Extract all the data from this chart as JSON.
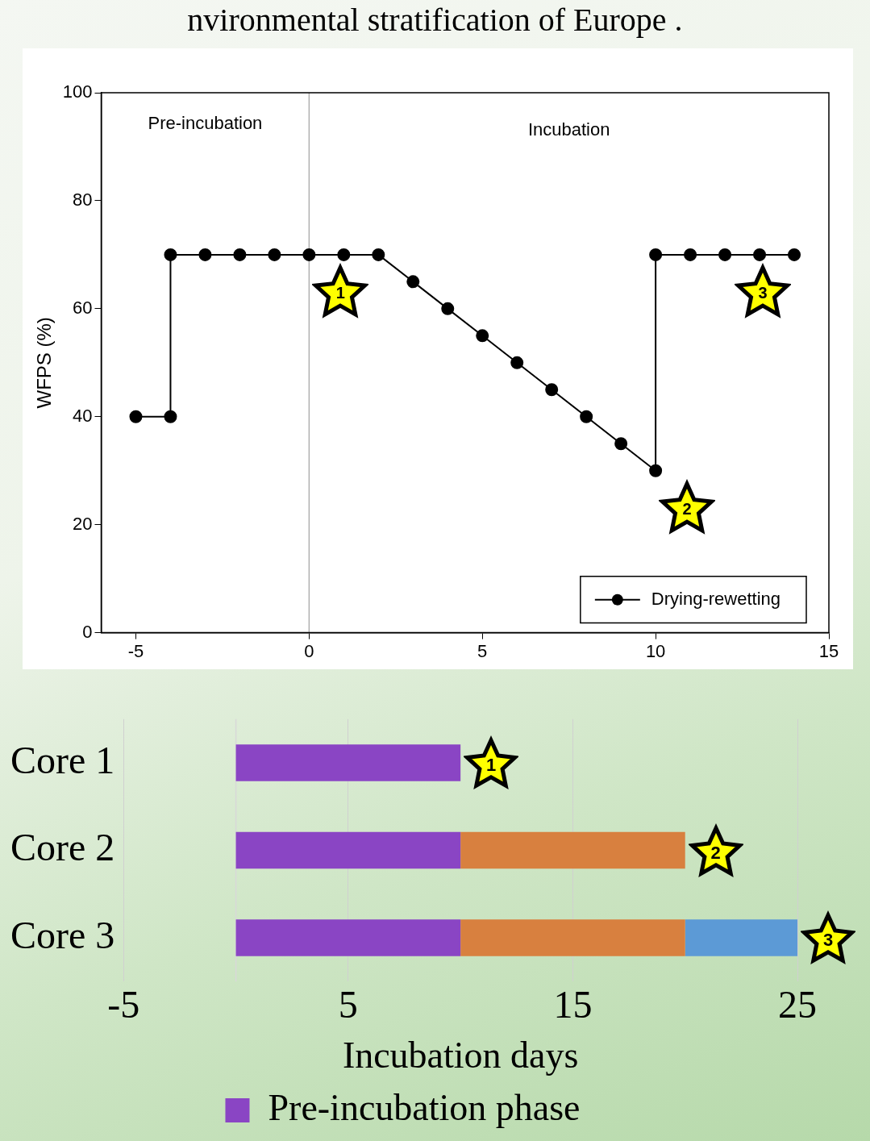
{
  "chart_data": [
    {
      "type": "line",
      "title": "nvironmental stratification of Europe .",
      "ylabel": "WFPS (%)",
      "x": [
        -5,
        -4,
        -4,
        -3,
        -2,
        -1,
        0,
        1,
        2,
        3,
        4,
        5,
        6,
        7,
        8,
        9,
        10,
        10,
        11,
        12,
        13,
        14
      ],
      "series": [
        {
          "name": "Drying-rewetting",
          "color": "#000000",
          "values": [
            40,
            40,
            70,
            70,
            70,
            70,
            70,
            70,
            70,
            65,
            60,
            55,
            50,
            45,
            40,
            35,
            30,
            70,
            70,
            70,
            70,
            70
          ]
        }
      ],
      "xlim": [
        -6,
        15
      ],
      "xticks": [
        -5,
        0,
        5,
        10,
        15
      ],
      "ylim": [
        0,
        100
      ],
      "yticks": [
        0,
        20,
        40,
        60,
        80,
        100
      ],
      "grid": false,
      "marker": "circle",
      "line_style": "solid",
      "legend": "bottom right",
      "ref_lines": [
        {
          "axis": "x",
          "value": 0,
          "color": "#b0b0b0"
        }
      ],
      "annotations": [
        "Pre-incubation",
        "Incubation",
        {
          "text": "1",
          "x": 0,
          "y": 70
        },
        {
          "text": "2",
          "x": 10,
          "y": 30
        },
        {
          "text": "3",
          "x": 14,
          "y": 70
        }
      ]
    },
    {
      "type": "bar",
      "orientation": "horizontal",
      "stacked": true,
      "xlabel": "Incubation days",
      "categories": [
        "Core 1",
        "Core 2",
        "Core 3"
      ],
      "series": [
        {
          "name": "Pre-incubation phase",
          "color": "#8a45c4",
          "values": [
            10,
            10,
            10
          ]
        },
        {
          "color": "#d8803f",
          "values": [
            null,
            10,
            10
          ]
        },
        {
          "color": "#5c9ad6",
          "values": [
            null,
            null,
            5
          ]
        }
      ],
      "xlim": [
        -5,
        25
      ],
      "xticks": [
        -5,
        5,
        15,
        25
      ],
      "grid": "x",
      "legend": "bottom",
      "ref_lines": [
        {
          "axis": "x",
          "value": 0,
          "color": "#d8d8d8"
        }
      ],
      "annotations": [
        {
          "text": "1",
          "x": 10,
          "y": "Core 1"
        },
        {
          "text": "2",
          "x": 20,
          "y": "Core 2"
        },
        {
          "text": "3",
          "x": 25,
          "y": "Core 3"
        }
      ]
    }
  ]
}
